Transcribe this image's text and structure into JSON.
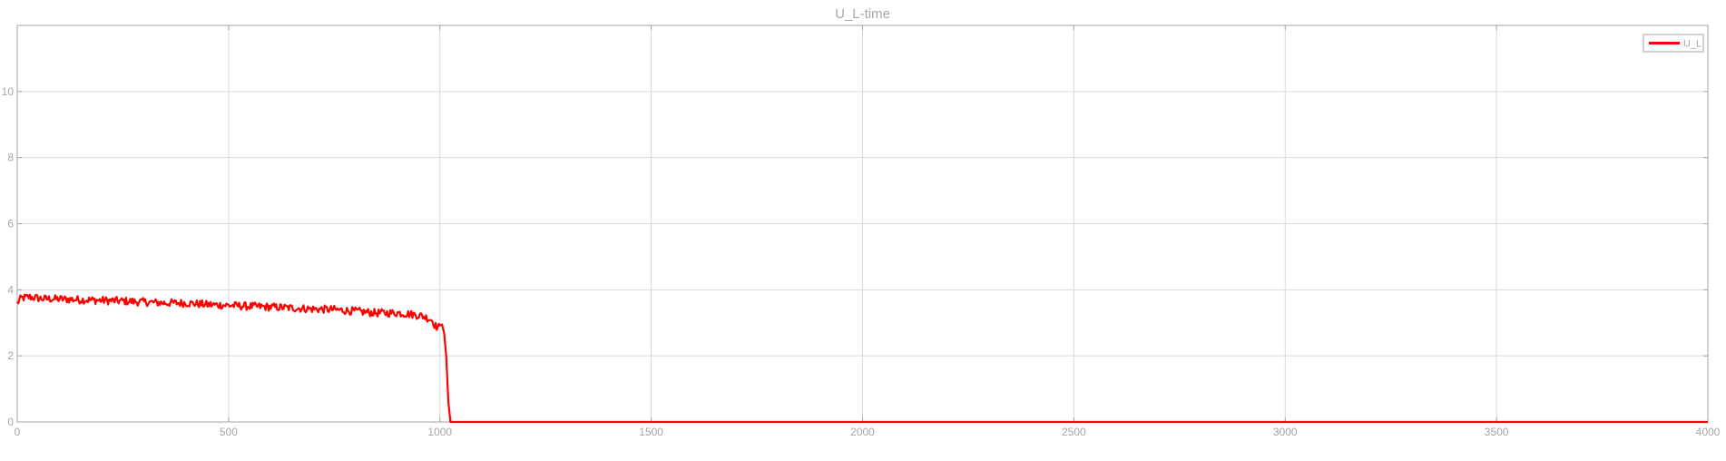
{
  "chart_data": {
    "type": "line",
    "title": "U_L-time",
    "xlabel": "",
    "ylabel": "",
    "xlim": [
      0,
      4000
    ],
    "ylim": [
      0,
      12
    ],
    "xticks": [
      0,
      500,
      1000,
      1500,
      2000,
      2500,
      3000,
      3500,
      4000
    ],
    "yticks": [
      0,
      2,
      4,
      6,
      8,
      10
    ],
    "grid": true,
    "legend_position": "top-right",
    "colors": {
      "series": "#ff0000",
      "grid": "#d9d9d9",
      "axes": "#a6a6a6",
      "text": "#a6a6a6"
    },
    "series": [
      {
        "name": "U_L",
        "x": [
          0,
          10,
          30,
          60,
          100,
          150,
          200,
          250,
          300,
          350,
          400,
          450,
          500,
          550,
          600,
          650,
          700,
          750,
          800,
          850,
          900,
          940,
          960,
          980,
          990,
          1000,
          1005,
          1010,
          1015,
          1020,
          1025,
          1030,
          1100,
          1500,
          2000,
          2500,
          3000,
          3500,
          4000
        ],
        "y": [
          3.6,
          3.75,
          3.78,
          3.73,
          3.72,
          3.7,
          3.68,
          3.66,
          3.63,
          3.6,
          3.6,
          3.55,
          3.53,
          3.5,
          3.48,
          3.45,
          3.42,
          3.4,
          3.35,
          3.3,
          3.3,
          3.25,
          3.2,
          3.1,
          2.9,
          2.85,
          2.95,
          2.7,
          2.0,
          0.6,
          0.0,
          0.0,
          0.0,
          0.0,
          0.0,
          0.0,
          0.0,
          0.0,
          0.0
        ]
      }
    ],
    "noise_band": {
      "x_range": [
        0,
        1000
      ],
      "amplitude": 0.12
    }
  }
}
